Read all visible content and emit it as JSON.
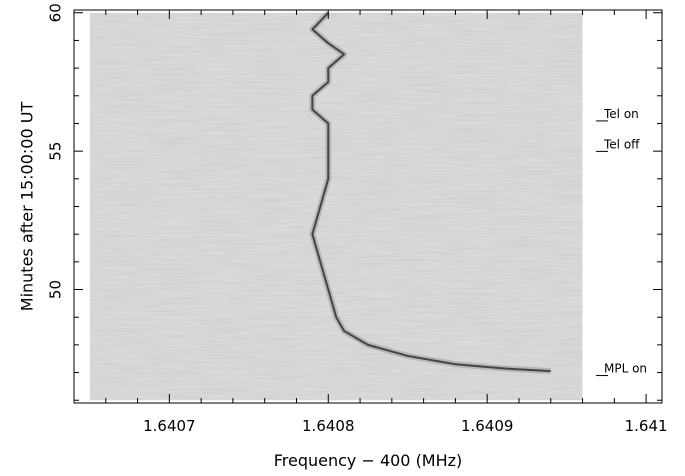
{
  "chart_data": {
    "type": "heatmap",
    "xlabel": "Frequency − 400 (MHz)",
    "ylabel": "Minutes after 15:00:00 UT",
    "xlim": [
      1.64064,
      1.64101
    ],
    "ylim": [
      45.9,
      60.1
    ],
    "data_extent": {
      "x": [
        1.64065,
        1.64096
      ],
      "y": [
        46.0,
        60.0
      ]
    },
    "grid": false,
    "x_ticks": [
      {
        "value": 1.6407,
        "label": "1.6407"
      },
      {
        "value": 1.6408,
        "label": "1.6408"
      },
      {
        "value": 1.6409,
        "label": "1.6409"
      },
      {
        "value": 1.641,
        "label": "1.641"
      }
    ],
    "y_ticks": [
      {
        "value": 50,
        "label": "50"
      },
      {
        "value": 55,
        "label": "55"
      },
      {
        "value": 60,
        "label": "60"
      }
    ],
    "annotations": [
      {
        "label": "Tel on",
        "y": 56.2
      },
      {
        "label": "Tel off",
        "y": 55.1
      },
      {
        "label": "MPL on",
        "y": 47.0
      }
    ],
    "signal_track": {
      "x": [
        1.6408,
        1.64079,
        1.6408,
        1.64081,
        1.6408,
        1.6408,
        1.64079,
        1.64079,
        1.6408,
        1.6408,
        1.6408,
        1.6408,
        1.640795,
        1.64079,
        1.640795,
        1.6408,
        1.640805,
        1.64081,
        1.640825,
        1.64085,
        1.64088,
        1.64091,
        1.64094
      ],
      "y": [
        60.0,
        59.4,
        58.9,
        58.5,
        58.0,
        57.5,
        57.0,
        56.5,
        56.0,
        55.5,
        55.0,
        54.0,
        53.0,
        52.0,
        51.0,
        50.0,
        49.0,
        48.5,
        48.0,
        47.6,
        47.3,
        47.15,
        47.05
      ]
    },
    "colors": {
      "background": "#dadada",
      "signal": "#303030"
    }
  }
}
